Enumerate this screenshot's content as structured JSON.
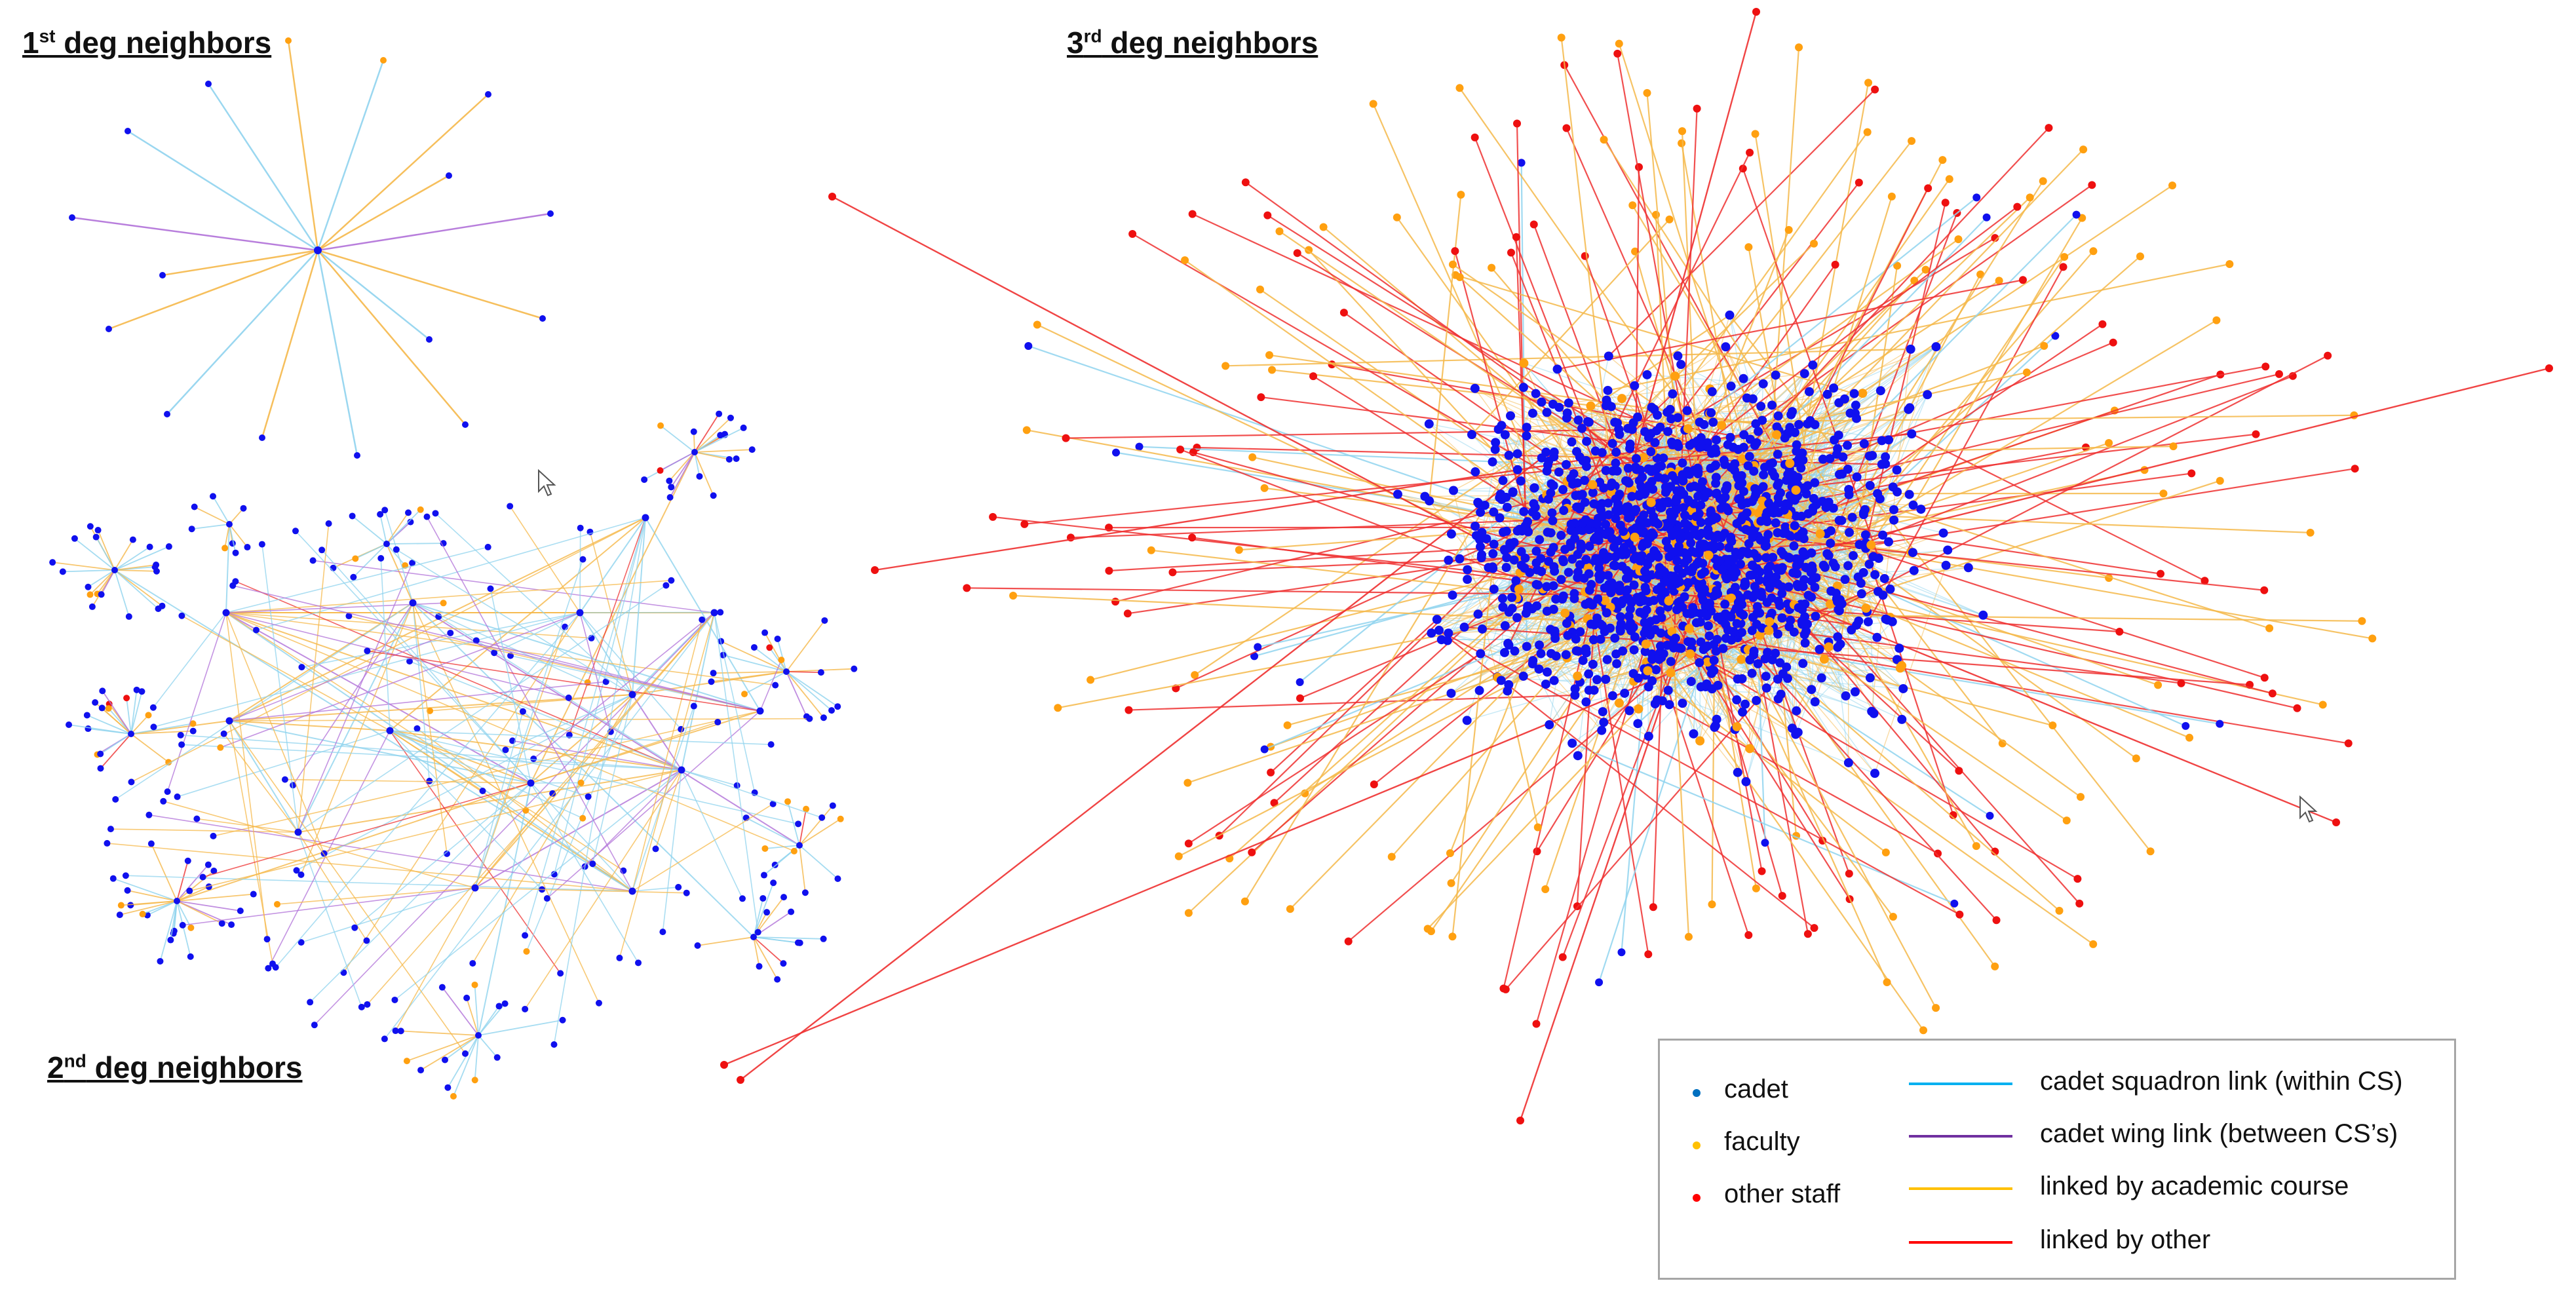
{
  "titles": {
    "first": {
      "num": "1",
      "sup": "st",
      "rest": " deg neighbors"
    },
    "second": {
      "num": "2",
      "sup": "nd",
      "rest": " deg neighbors"
    },
    "third": {
      "num": "3",
      "sup": "rd",
      "rest": " deg neighbors"
    }
  },
  "legend": {
    "nodes": [
      {
        "label": "cadet",
        "color": "#0070c0"
      },
      {
        "label": "faculty",
        "color": "#ffc000"
      },
      {
        "label": "other staff",
        "color": "#ff0000"
      }
    ],
    "edges": [
      {
        "label": "cadet squadron link (within CS)",
        "color": "#00b0f0"
      },
      {
        "label": "cadet wing link (between CS’s)",
        "color": "#7030a0"
      },
      {
        "label": "linked by academic course",
        "color": "#ffc000"
      },
      {
        "label": "linked by other",
        "color": "#ff0000"
      }
    ]
  },
  "graph_colors": {
    "cadet_node": "#1010ee",
    "faculty_node": "#ffa010",
    "staff_node": "#ee1010",
    "squadron_edge": "#8fd3ee",
    "wing_edge": "#b070d8",
    "course_edge": "#f5b84a",
    "other_edge": "#ee3030"
  }
}
